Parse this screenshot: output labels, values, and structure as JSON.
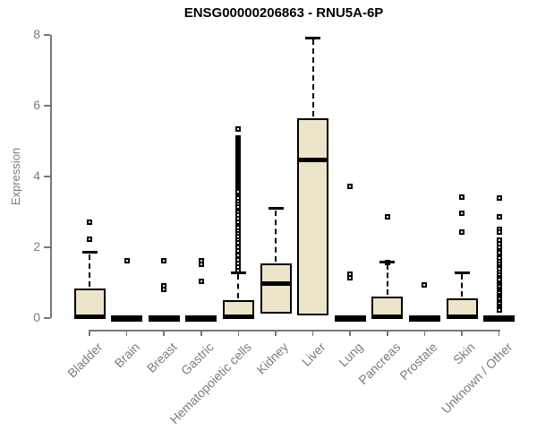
{
  "title": "ENSG00000206863 - RNU5A-6P",
  "colors": {
    "background": "#FFFFFF",
    "box_fill": "#ECE5C9",
    "box_border": "#000000",
    "median": "#000000",
    "axis": "#777777",
    "axis_text": "#7C7C7C",
    "title_text": "#000000"
  },
  "chart_data": {
    "type": "boxplot",
    "title": "ENSG00000206863 - RNU5A-6P",
    "xlabel": "",
    "ylabel": "Expression",
    "ylim": [
      0,
      8
    ],
    "yticks": [
      0,
      2,
      4,
      6,
      8
    ],
    "grid": false,
    "legend": false,
    "categories": [
      "Bladder",
      "Brain",
      "Breast",
      "Gastric",
      "Hematopoietic cells",
      "Kidney",
      "Liver",
      "Lung",
      "Pancreas",
      "Prostate",
      "Skin",
      "Unknown / Other"
    ],
    "series": [
      {
        "label": "Bladder",
        "q1": 0,
        "median": 0.04,
        "q3": 0.84,
        "whisker_low": 0,
        "whisker_high": 1.85,
        "outliers": [
          2.7,
          2.24
        ]
      },
      {
        "label": "Brain",
        "q1": 0,
        "median": 0,
        "q3": 0,
        "whisker_low": 0,
        "whisker_high": 0,
        "outliers": [
          1.62
        ]
      },
      {
        "label": "Breast",
        "q1": 0,
        "median": 0,
        "q3": 0,
        "whisker_low": 0,
        "whisker_high": 0,
        "outliers": [
          1.63,
          0.9,
          0.82
        ]
      },
      {
        "label": "Gastric",
        "q1": 0,
        "median": 0,
        "q3": 0,
        "whisker_low": 0,
        "whisker_high": 0,
        "outliers": [
          1.62,
          1.52,
          1.05
        ]
      },
      {
        "label": "Hematopoietic cells",
        "q1": 0,
        "median": 0.03,
        "q3": 0.5,
        "whisker_low": 0,
        "whisker_high": 1.28,
        "outliers": [
          5.35,
          5.08,
          5.03,
          4.98,
          4.93,
          4.88,
          4.83,
          4.78,
          4.73,
          4.68,
          4.63,
          4.58,
          4.53,
          4.48,
          4.43,
          4.38,
          4.33,
          4.28,
          4.23,
          4.18,
          4.13,
          4.08,
          4.03,
          3.98,
          3.93,
          3.88,
          3.83,
          3.78,
          3.73,
          3.68,
          3.63,
          3.58,
          3.45,
          3.38,
          3.3,
          3.22,
          3.15,
          3.05,
          2.98,
          2.9,
          2.8,
          2.72,
          2.62,
          2.55,
          2.45,
          2.38,
          2.3,
          2.2,
          2.12,
          2.0,
          1.9,
          1.78,
          1.65,
          1.55,
          1.45,
          1.35
        ]
      },
      {
        "label": "Kidney",
        "q1": 0.12,
        "median": 0.97,
        "q3": 1.54,
        "whisker_low": 0.12,
        "whisker_high": 3.1,
        "outliers": []
      },
      {
        "label": "Liver",
        "q1": 0.08,
        "median": 4.46,
        "q3": 5.65,
        "whisker_low": 0.08,
        "whisker_high": 7.92,
        "outliers": []
      },
      {
        "label": "Lung",
        "q1": 0,
        "median": 0,
        "q3": 0,
        "whisker_low": 0,
        "whisker_high": 0,
        "outliers": [
          3.72,
          1.25,
          1.13
        ]
      },
      {
        "label": "Pancreas",
        "q1": 0,
        "median": 0.03,
        "q3": 0.6,
        "whisker_low": 0,
        "whisker_high": 1.57,
        "outliers": [
          2.85,
          1.57
        ]
      },
      {
        "label": "Prostate",
        "q1": 0,
        "median": 0,
        "q3": 0,
        "whisker_low": 0,
        "whisker_high": 0,
        "outliers": [
          0.93
        ]
      },
      {
        "label": "Skin",
        "q1": 0,
        "median": 0.03,
        "q3": 0.55,
        "whisker_low": 0,
        "whisker_high": 1.29,
        "outliers": [
          3.42,
          2.97,
          2.44
        ]
      },
      {
        "label": "Unknown / Other",
        "q1": 0,
        "median": 0,
        "q3": 0,
        "whisker_low": 0,
        "whisker_high": 0,
        "outliers": [
          3.4,
          2.85,
          2.5,
          2.42,
          2.2,
          2.1,
          2.0,
          1.85,
          1.7,
          1.6,
          1.52,
          1.45,
          1.38,
          1.3,
          1.22,
          1.15,
          1.08,
          1.0,
          0.94,
          0.88,
          0.82,
          0.76,
          0.7,
          0.64,
          0.58,
          0.52,
          0.46,
          0.4,
          0.34,
          0.28,
          0.22
        ]
      }
    ]
  }
}
